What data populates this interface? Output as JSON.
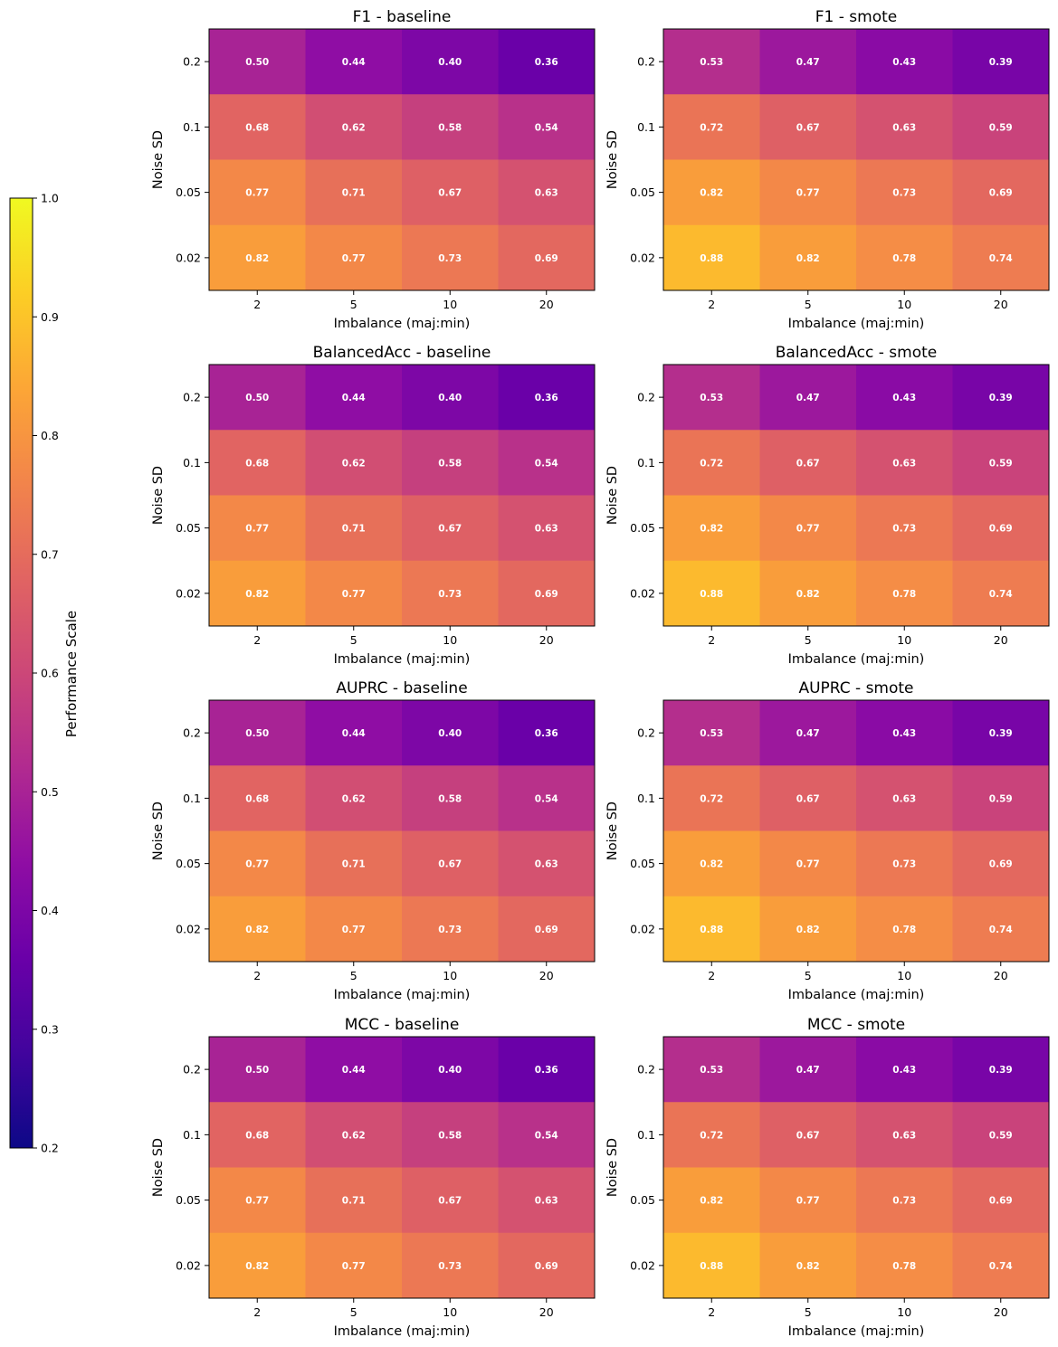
{
  "chart_data": {
    "type": "heatmap",
    "colormap": "plasma",
    "colorbar": {
      "label": "Performance Scale",
      "min": 0.2,
      "max": 1.0,
      "ticks": [
        "0.2",
        "0.3",
        "0.4",
        "0.5",
        "0.6",
        "0.7",
        "0.8",
        "0.9",
        "1.0"
      ]
    },
    "x_categories": [
      "2",
      "5",
      "10",
      "20"
    ],
    "y_categories": [
      "0.2",
      "0.1",
      "0.05",
      "0.02"
    ],
    "xlabel": "Imbalance (maj:min)",
    "ylabel": "Noise SD",
    "panels": [
      {
        "title": "F1 - baseline",
        "values": [
          [
            0.5,
            0.44,
            0.4,
            0.36
          ],
          [
            0.68,
            0.62,
            0.58,
            0.54
          ],
          [
            0.77,
            0.71,
            0.67,
            0.63
          ],
          [
            0.82,
            0.77,
            0.73,
            0.69
          ]
        ],
        "labels": [
          [
            "0.50",
            "0.44",
            "0.40",
            "0.36"
          ],
          [
            "0.68",
            "0.62",
            "0.58",
            "0.54"
          ],
          [
            "0.77",
            "0.71",
            "0.67",
            "0.63"
          ],
          [
            "0.82",
            "0.77",
            "0.73",
            "0.69"
          ]
        ]
      },
      {
        "title": "F1 - smote",
        "values": [
          [
            0.53,
            0.47,
            0.43,
            0.39
          ],
          [
            0.72,
            0.67,
            0.63,
            0.59
          ],
          [
            0.82,
            0.77,
            0.73,
            0.69
          ],
          [
            0.88,
            0.82,
            0.78,
            0.74
          ]
        ],
        "labels": [
          [
            "0.53",
            "0.47",
            "0.43",
            "0.39"
          ],
          [
            "0.72",
            "0.67",
            "0.63",
            "0.59"
          ],
          [
            "0.82",
            "0.77",
            "0.73",
            "0.69"
          ],
          [
            "0.88",
            "0.82",
            "0.78",
            "0.74"
          ]
        ]
      },
      {
        "title": "BalancedAcc - baseline",
        "values": [
          [
            0.5,
            0.44,
            0.4,
            0.36
          ],
          [
            0.68,
            0.62,
            0.58,
            0.54
          ],
          [
            0.77,
            0.71,
            0.67,
            0.63
          ],
          [
            0.82,
            0.77,
            0.73,
            0.69
          ]
        ],
        "labels": [
          [
            "0.50",
            "0.44",
            "0.40",
            "0.36"
          ],
          [
            "0.68",
            "0.62",
            "0.58",
            "0.54"
          ],
          [
            "0.77",
            "0.71",
            "0.67",
            "0.63"
          ],
          [
            "0.82",
            "0.77",
            "0.73",
            "0.69"
          ]
        ]
      },
      {
        "title": "BalancedAcc - smote",
        "values": [
          [
            0.53,
            0.47,
            0.43,
            0.39
          ],
          [
            0.72,
            0.67,
            0.63,
            0.59
          ],
          [
            0.82,
            0.77,
            0.73,
            0.69
          ],
          [
            0.88,
            0.82,
            0.78,
            0.74
          ]
        ],
        "labels": [
          [
            "0.53",
            "0.47",
            "0.43",
            "0.39"
          ],
          [
            "0.72",
            "0.67",
            "0.63",
            "0.59"
          ],
          [
            "0.82",
            "0.77",
            "0.73",
            "0.69"
          ],
          [
            "0.88",
            "0.82",
            "0.78",
            "0.74"
          ]
        ]
      },
      {
        "title": "AUPRC - baseline",
        "values": [
          [
            0.5,
            0.44,
            0.4,
            0.36
          ],
          [
            0.68,
            0.62,
            0.58,
            0.54
          ],
          [
            0.77,
            0.71,
            0.67,
            0.63
          ],
          [
            0.82,
            0.77,
            0.73,
            0.69
          ]
        ],
        "labels": [
          [
            "0.50",
            "0.44",
            "0.40",
            "0.36"
          ],
          [
            "0.68",
            "0.62",
            "0.58",
            "0.54"
          ],
          [
            "0.77",
            "0.71",
            "0.67",
            "0.63"
          ],
          [
            "0.82",
            "0.77",
            "0.73",
            "0.69"
          ]
        ]
      },
      {
        "title": "AUPRC - smote",
        "values": [
          [
            0.53,
            0.47,
            0.43,
            0.39
          ],
          [
            0.72,
            0.67,
            0.63,
            0.59
          ],
          [
            0.82,
            0.77,
            0.73,
            0.69
          ],
          [
            0.88,
            0.82,
            0.78,
            0.74
          ]
        ],
        "labels": [
          [
            "0.53",
            "0.47",
            "0.43",
            "0.39"
          ],
          [
            "0.72",
            "0.67",
            "0.63",
            "0.59"
          ],
          [
            "0.82",
            "0.77",
            "0.73",
            "0.69"
          ],
          [
            "0.88",
            "0.82",
            "0.78",
            "0.74"
          ]
        ]
      },
      {
        "title": "MCC - baseline",
        "values": [
          [
            0.5,
            0.44,
            0.4,
            0.36
          ],
          [
            0.68,
            0.62,
            0.58,
            0.54
          ],
          [
            0.77,
            0.71,
            0.67,
            0.63
          ],
          [
            0.82,
            0.77,
            0.73,
            0.69
          ]
        ],
        "labels": [
          [
            "0.50",
            "0.44",
            "0.40",
            "0.36"
          ],
          [
            "0.68",
            "0.62",
            "0.58",
            "0.54"
          ],
          [
            "0.77",
            "0.71",
            "0.67",
            "0.63"
          ],
          [
            "0.82",
            "0.77",
            "0.73",
            "0.69"
          ]
        ]
      },
      {
        "title": "MCC - smote",
        "values": [
          [
            0.53,
            0.47,
            0.43,
            0.39
          ],
          [
            0.72,
            0.67,
            0.63,
            0.59
          ],
          [
            0.82,
            0.77,
            0.73,
            0.69
          ],
          [
            0.88,
            0.82,
            0.78,
            0.74
          ]
        ],
        "labels": [
          [
            "0.53",
            "0.47",
            "0.43",
            "0.39"
          ],
          [
            "0.72",
            "0.67",
            "0.63",
            "0.59"
          ],
          [
            "0.82",
            "0.77",
            "0.73",
            "0.69"
          ],
          [
            "0.88",
            "0.82",
            "0.78",
            "0.74"
          ]
        ]
      }
    ]
  }
}
